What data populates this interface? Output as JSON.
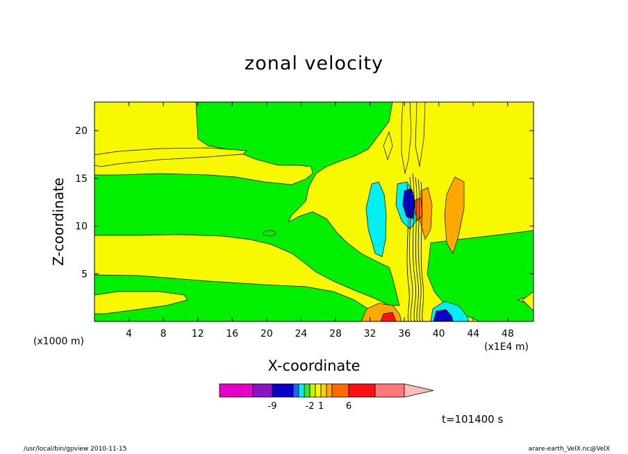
{
  "chart_data": {
    "type": "contour",
    "title": "zonal velocity",
    "xlabel": "X-coordinate",
    "ylabel": "Z-coordinate",
    "x_unit": "(x1E4 m)",
    "y_unit": "(x1000 m)",
    "xlim": [
      0,
      51
    ],
    "ylim": [
      0,
      23
    ],
    "x_ticks": [
      "4",
      "8",
      "12",
      "16",
      "20",
      "24",
      "28",
      "32",
      "36",
      "40",
      "44",
      "48"
    ],
    "y_ticks": [
      "5",
      "10",
      "15",
      "20"
    ],
    "time_label": "t=101400 s",
    "colorbar": {
      "colors": [
        "#e800c8",
        "#8c14c0",
        "#0a00c8",
        "#1e64ff",
        "#00f0f0",
        "#32e632",
        "#ccf000",
        "#f8f800",
        "#ffd200",
        "#ffa800",
        "#ff6a00",
        "#ff1010",
        "#ff7878",
        "#ffbcbc"
      ],
      "labels": [
        "-9",
        "-2",
        "1",
        "6"
      ]
    }
  },
  "footer": {
    "left": "/usr/local/bin/gpview  2010-11-15",
    "right": "arare-earth_VelX.nc@VelX"
  }
}
